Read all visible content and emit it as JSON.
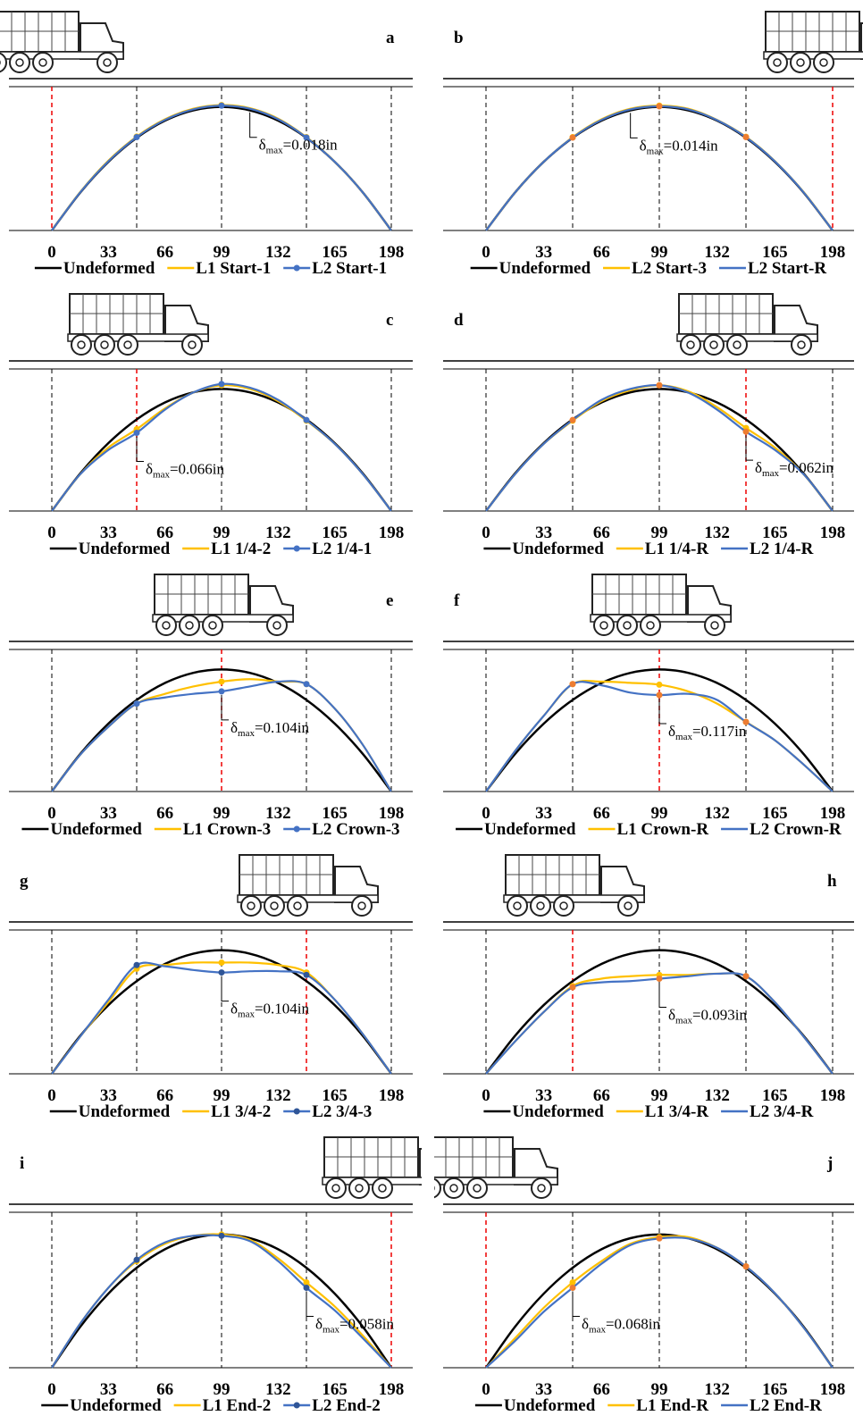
{
  "chart_data": [
    {
      "type": "line",
      "panel": "a",
      "load_position": 0,
      "x": [
        0,
        16.5,
        33,
        49.5,
        66,
        82.5,
        99,
        115.5,
        132,
        148.5,
        165,
        181.5,
        198
      ],
      "xlim": [
        0,
        198
      ],
      "xticks": [
        0,
        33,
        66,
        99,
        132,
        165,
        198
      ],
      "ylim": [
        0,
        1.2
      ],
      "annotation": {
        "symbol": "δ",
        "sub": "max",
        "text": "=0.018in"
      },
      "series": [
        {
          "name": "Undeformed",
          "color": "#000000",
          "values": [
            0,
            0.306,
            0.556,
            0.75,
            0.889,
            0.972,
            1,
            0.972,
            0.889,
            0.75,
            0.556,
            0.306,
            0
          ]
        },
        {
          "name": "L1 Start-1",
          "color": "#ffc000",
          "values": [
            0,
            0.31,
            0.565,
            0.76,
            0.9,
            0.985,
            1.015,
            0.99,
            0.905,
            0.755,
            0.556,
            0.306,
            0
          ]
        },
        {
          "name": "L2 Start-1",
          "color": "#4472c4",
          "marker_color": "#4472c4",
          "values": [
            0,
            0.308,
            0.56,
            0.755,
            0.895,
            0.98,
            1.01,
            0.985,
            0.9,
            0.752,
            0.556,
            0.306,
            0
          ]
        }
      ]
    },
    {
      "type": "line",
      "panel": "b",
      "load_position": 198,
      "x": [
        0,
        16.5,
        33,
        49.5,
        66,
        82.5,
        99,
        115.5,
        132,
        148.5,
        165,
        181.5,
        198
      ],
      "xlim": [
        0,
        198
      ],
      "xticks": [
        0,
        33,
        66,
        99,
        132,
        165,
        198
      ],
      "ylim": [
        0,
        1.2
      ],
      "annotation": {
        "symbol": "δ",
        "sub": "max",
        "text": "=0.014in"
      },
      "series": [
        {
          "name": "Undeformed",
          "color": "#000000",
          "values": [
            0,
            0.306,
            0.556,
            0.75,
            0.889,
            0.972,
            1,
            0.972,
            0.889,
            0.75,
            0.556,
            0.306,
            0
          ]
        },
        {
          "name": "L2 Start-3",
          "color": "#ffc000",
          "values": [
            0,
            0.306,
            0.556,
            0.755,
            0.9,
            0.985,
            1.01,
            0.985,
            0.895,
            0.758,
            0.562,
            0.31,
            0
          ]
        },
        {
          "name": "L2 Start-R",
          "color": "#4472c4",
          "marker_color": "#ed7d31",
          "values": [
            0,
            0.306,
            0.556,
            0.752,
            0.895,
            0.98,
            1.005,
            0.98,
            0.893,
            0.755,
            0.56,
            0.308,
            0
          ]
        }
      ]
    },
    {
      "type": "line",
      "panel": "c",
      "load_position": 49.5,
      "x": [
        0,
        16.5,
        33,
        49.5,
        66,
        82.5,
        99,
        115.5,
        132,
        148.5,
        165,
        181.5,
        198
      ],
      "xlim": [
        0,
        198
      ],
      "xticks": [
        0,
        33,
        66,
        99,
        132,
        165,
        198
      ],
      "ylim": [
        0,
        1.2
      ],
      "annotation": {
        "symbol": "δ",
        "sub": "max",
        "text": "=0.066in"
      },
      "series": [
        {
          "name": "Undeformed",
          "color": "#000000",
          "values": [
            0,
            0.306,
            0.556,
            0.75,
            0.889,
            0.972,
            1,
            0.972,
            0.889,
            0.75,
            0.556,
            0.306,
            0
          ]
        },
        {
          "name": "L1 1/4-2",
          "color": "#ffc000",
          "values": [
            0,
            0.3,
            0.52,
            0.67,
            0.84,
            0.97,
            1.03,
            1,
            0.9,
            0.74,
            0.55,
            0.3,
            0
          ]
        },
        {
          "name": "L2 1/4-1",
          "color": "#4472c4",
          "marker_color": "#4472c4",
          "values": [
            0,
            0.3,
            0.5,
            0.64,
            0.83,
            0.97,
            1.04,
            1.01,
            0.91,
            0.745,
            0.55,
            0.3,
            0
          ]
        }
      ]
    },
    {
      "type": "line",
      "panel": "d",
      "load_position": 148.5,
      "x": [
        0,
        16.5,
        33,
        49.5,
        66,
        82.5,
        99,
        115.5,
        132,
        148.5,
        165,
        181.5,
        198
      ],
      "xlim": [
        0,
        198
      ],
      "xticks": [
        0,
        33,
        66,
        99,
        132,
        165,
        198
      ],
      "ylim": [
        0,
        1.2
      ],
      "annotation": {
        "symbol": "δ",
        "sub": "max",
        "text": "=0.062in"
      },
      "series": [
        {
          "name": "Undeformed",
          "color": "#000000",
          "values": [
            0,
            0.306,
            0.556,
            0.75,
            0.889,
            0.972,
            1,
            0.972,
            0.889,
            0.75,
            0.556,
            0.306,
            0
          ]
        },
        {
          "name": "L1 1/4-R",
          "color": "#ffc000",
          "values": [
            0,
            0.3,
            0.55,
            0.74,
            0.9,
            0.99,
            1.03,
            0.98,
            0.85,
            0.68,
            0.52,
            0.3,
            0
          ]
        },
        {
          "name": "L2 1/4-R",
          "color": "#4472c4",
          "marker_color": "#ed7d31",
          "values": [
            0,
            0.3,
            0.55,
            0.745,
            0.91,
            1,
            1.03,
            0.97,
            0.83,
            0.65,
            0.5,
            0.3,
            0
          ]
        }
      ]
    },
    {
      "type": "line",
      "panel": "e",
      "load_position": 99,
      "x": [
        0,
        16.5,
        33,
        49.5,
        66,
        82.5,
        99,
        115.5,
        132,
        148.5,
        165,
        181.5,
        198
      ],
      "xlim": [
        0,
        198
      ],
      "xticks": [
        0,
        33,
        66,
        99,
        132,
        165,
        198
      ],
      "ylim": [
        0,
        1.2
      ],
      "annotation": {
        "symbol": "δ",
        "sub": "max",
        "text": "=0.104in"
      },
      "series": [
        {
          "name": "Undeformed",
          "color": "#000000",
          "values": [
            0,
            0.306,
            0.556,
            0.75,
            0.889,
            0.972,
            1,
            0.972,
            0.889,
            0.75,
            0.556,
            0.306,
            0
          ]
        },
        {
          "name": "L1 Crown-3",
          "color": "#ffc000",
          "values": [
            0,
            0.3,
            0.53,
            0.72,
            0.8,
            0.86,
            0.9,
            0.92,
            0.9,
            0.88,
            0.68,
            0.38,
            0
          ]
        },
        {
          "name": "L2 Crown-3",
          "color": "#4472c4",
          "marker_color": "#4472c4",
          "values": [
            0,
            0.3,
            0.53,
            0.72,
            0.77,
            0.8,
            0.82,
            0.86,
            0.9,
            0.88,
            0.68,
            0.38,
            0
          ]
        }
      ]
    },
    {
      "type": "line",
      "panel": "f",
      "load_position": 99,
      "x": [
        0,
        16.5,
        33,
        49.5,
        66,
        82.5,
        99,
        115.5,
        132,
        148.5,
        165,
        181.5,
        198
      ],
      "xlim": [
        0,
        198
      ],
      "xticks": [
        0,
        33,
        66,
        99,
        132,
        165,
        198
      ],
      "ylim": [
        0,
        1.2
      ],
      "annotation": {
        "symbol": "δ",
        "sub": "max",
        "text": "=0.117in"
      },
      "series": [
        {
          "name": "Undeformed",
          "color": "#000000",
          "values": [
            0,
            0.306,
            0.556,
            0.75,
            0.889,
            0.972,
            1,
            0.972,
            0.889,
            0.75,
            0.556,
            0.306,
            0
          ]
        },
        {
          "name": "L1 Crown-R",
          "color": "#ffc000",
          "values": [
            0,
            0.33,
            0.62,
            0.88,
            0.9,
            0.89,
            0.875,
            0.82,
            0.72,
            0.57,
            0.42,
            0.22,
            0
          ]
        },
        {
          "name": "L2 Crown-R",
          "color": "#4472c4",
          "marker_color": "#ed7d31",
          "values": [
            0,
            0.33,
            0.62,
            0.88,
            0.87,
            0.81,
            0.79,
            0.8,
            0.75,
            0.57,
            0.42,
            0.22,
            0
          ]
        }
      ]
    },
    {
      "type": "line",
      "panel": "g",
      "load_position": 148.5,
      "x": [
        0,
        16.5,
        33,
        49.5,
        66,
        82.5,
        99,
        115.5,
        132,
        148.5,
        165,
        181.5,
        198
      ],
      "xlim": [
        0,
        198
      ],
      "xticks": [
        0,
        33,
        66,
        99,
        132,
        165,
        198
      ],
      "ylim": [
        0,
        1.2
      ],
      "annotation": {
        "symbol": "δ",
        "sub": "max",
        "text": "=0.104in"
      },
      "series": [
        {
          "name": "Undeformed",
          "color": "#000000",
          "values": [
            0,
            0.306,
            0.556,
            0.75,
            0.889,
            0.972,
            1,
            0.972,
            0.889,
            0.75,
            0.556,
            0.306,
            0
          ]
        },
        {
          "name": "L1 3/4-2",
          "color": "#ffc000",
          "values": [
            0,
            0.3,
            0.58,
            0.85,
            0.88,
            0.9,
            0.9,
            0.9,
            0.88,
            0.82,
            0.6,
            0.32,
            0
          ]
        },
        {
          "name": "L2 3/4-3",
          "color": "#4472c4",
          "marker_color": "#2f5597",
          "values": [
            0,
            0.3,
            0.6,
            0.88,
            0.87,
            0.84,
            0.82,
            0.83,
            0.83,
            0.8,
            0.6,
            0.32,
            0
          ]
        }
      ]
    },
    {
      "type": "line",
      "panel": "h",
      "load_position": 49.5,
      "x": [
        0,
        16.5,
        33,
        49.5,
        66,
        82.5,
        99,
        115.5,
        132,
        148.5,
        165,
        181.5,
        198
      ],
      "xlim": [
        0,
        198
      ],
      "xticks": [
        0,
        33,
        66,
        99,
        132,
        165,
        198
      ],
      "ylim": [
        0,
        1.2
      ],
      "annotation": {
        "symbol": "δ",
        "sub": "max",
        "text": "=0.093in"
      },
      "series": [
        {
          "name": "Undeformed",
          "color": "#000000",
          "values": [
            0,
            0.306,
            0.556,
            0.75,
            0.889,
            0.972,
            1,
            0.972,
            0.889,
            0.75,
            0.556,
            0.306,
            0
          ]
        },
        {
          "name": "L1 3/4-R",
          "color": "#ffc000",
          "values": [
            0,
            0.26,
            0.5,
            0.71,
            0.77,
            0.79,
            0.8,
            0.8,
            0.81,
            0.79,
            0.58,
            0.3,
            0
          ]
        },
        {
          "name": "L2 3/4-R",
          "color": "#4472c4",
          "marker_color": "#ed7d31",
          "values": [
            0,
            0.26,
            0.5,
            0.7,
            0.74,
            0.75,
            0.77,
            0.79,
            0.81,
            0.79,
            0.58,
            0.3,
            0
          ]
        }
      ]
    },
    {
      "type": "line",
      "panel": "i",
      "load_position": 198,
      "x": [
        0,
        16.5,
        33,
        49.5,
        66,
        82.5,
        99,
        115.5,
        132,
        148.5,
        165,
        181.5,
        198
      ],
      "xlim": [
        0,
        198
      ],
      "xticks": [
        0,
        33,
        66,
        99,
        132,
        165,
        198
      ],
      "ylim": [
        0,
        1.2
      ],
      "annotation": {
        "symbol": "δ",
        "sub": "max",
        "text": "=0.058in"
      },
      "series": [
        {
          "name": "Undeformed",
          "color": "#000000",
          "values": [
            0,
            0.306,
            0.556,
            0.75,
            0.889,
            0.972,
            1,
            0.972,
            0.889,
            0.75,
            0.556,
            0.306,
            0
          ]
        },
        {
          "name": "L1 End-2",
          "color": "#ffc000",
          "values": [
            0,
            0.33,
            0.6,
            0.8,
            0.93,
            0.99,
            1,
            0.96,
            0.82,
            0.64,
            0.46,
            0.24,
            0
          ]
        },
        {
          "name": "L2 End-2",
          "color": "#4472c4",
          "marker_color": "#2f5597",
          "values": [
            0,
            0.33,
            0.6,
            0.81,
            0.94,
            0.99,
            0.99,
            0.95,
            0.8,
            0.6,
            0.43,
            0.22,
            0
          ]
        }
      ]
    },
    {
      "type": "line",
      "panel": "j",
      "load_position": 0,
      "x": [
        0,
        16.5,
        33,
        49.5,
        66,
        82.5,
        99,
        115.5,
        132,
        148.5,
        165,
        181.5,
        198
      ],
      "xlim": [
        0,
        198
      ],
      "xticks": [
        0,
        33,
        66,
        99,
        132,
        165,
        198
      ],
      "ylim": [
        0,
        1.2
      ],
      "annotation": {
        "symbol": "δ",
        "sub": "max",
        "text": "=0.068in"
      },
      "series": [
        {
          "name": "Undeformed",
          "color": "#000000",
          "values": [
            0,
            0.306,
            0.556,
            0.75,
            0.889,
            0.972,
            1,
            0.972,
            0.889,
            0.75,
            0.556,
            0.306,
            0
          ]
        },
        {
          "name": "L1 End-R",
          "color": "#ffc000",
          "values": [
            0,
            0.22,
            0.45,
            0.64,
            0.8,
            0.93,
            0.98,
            0.98,
            0.9,
            0.76,
            0.56,
            0.3,
            0
          ]
        },
        {
          "name": "L2 End-R",
          "color": "#4472c4",
          "marker_color": "#ed7d31",
          "values": [
            0,
            0.2,
            0.42,
            0.6,
            0.78,
            0.92,
            0.97,
            0.97,
            0.9,
            0.76,
            0.56,
            0.3,
            0
          ]
        }
      ]
    }
  ]
}
